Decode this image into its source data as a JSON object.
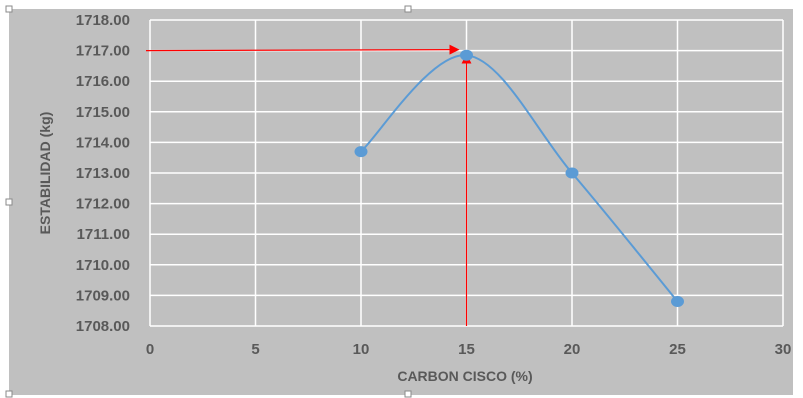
{
  "chart_data": {
    "type": "scatter",
    "title": "",
    "xlabel": "CARBON CISCO (%)",
    "ylabel": "ESTABILIDAD (kg)",
    "xlim": [
      0,
      30
    ],
    "ylim": [
      1708,
      1718
    ],
    "x_ticks": [
      0,
      5,
      10,
      15,
      20,
      25,
      30
    ],
    "y_ticks": [
      1708,
      1709,
      1710,
      1711,
      1712,
      1713,
      1714,
      1715,
      1716,
      1717,
      1718
    ],
    "x_tick_labels": [
      "0",
      "5",
      "10",
      "15",
      "20",
      "25",
      "30"
    ],
    "y_tick_labels": [
      "1708.00",
      "1709.00",
      "1710.00",
      "1711.00",
      "1712.00",
      "1713.00",
      "1714.00",
      "1715.00",
      "1716.00",
      "1717.00",
      "1718.00"
    ],
    "grid": true,
    "smooth_line": true,
    "series": [
      {
        "x": [
          10,
          15,
          20,
          25
        ],
        "y": [
          1713.7,
          1716.85,
          1713.0,
          1708.8
        ]
      }
    ],
    "annotations": {
      "optimum_x": 15,
      "optimum_y": 1717.0,
      "arrow_color": "#ff0000"
    },
    "colors": {
      "plot_background": "#c0c0c0",
      "grid": "#ffffff",
      "series": "#5b9bd5",
      "text": "#595959"
    }
  }
}
